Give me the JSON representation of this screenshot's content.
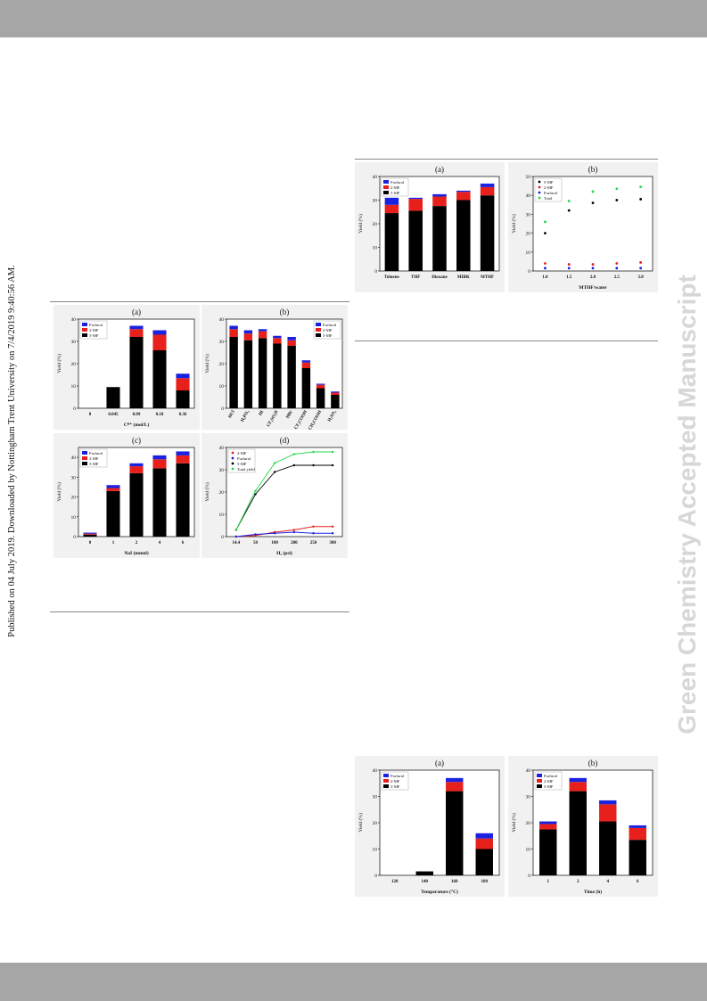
{
  "sidenote": "Published on 04 July 2019. Downloaded by Nottingham Trent University on 7/4/2019 9:40:56 AM.",
  "watermark": "Green Chemistry Accepted Manuscript",
  "colors": {
    "furfural": "#1a22e0",
    "mf2": "#e8201c",
    "mf5": "#000000",
    "total": "#22d84a",
    "panel_bg": "#f1f1f1"
  },
  "figures": {
    "fig_left": {
      "panels": [
        {
          "type": "bar",
          "title": "(a)",
          "xlabel": "Cᴴ⁺ (mol/L)",
          "ylabel": "Yield (%)",
          "ylim": [
            0,
            40
          ],
          "yticks": [
            0,
            10,
            20,
            30,
            40
          ],
          "legend": [
            "Furfural",
            "2-MF",
            "5-MF"
          ],
          "legend_pos": "top-left",
          "categories": [
            "0",
            "0.045",
            "0.09",
            "0.18",
            "0.36"
          ],
          "series": [
            {
              "name": "5-MF",
              "values": [
                0,
                9.5,
                32,
                26,
                8
              ]
            },
            {
              "name": "2-MF",
              "values": [
                0,
                0,
                3.5,
                7,
                5.5
              ]
            },
            {
              "name": "Furfural",
              "values": [
                0,
                0,
                1.5,
                2,
                2
              ]
            }
          ]
        },
        {
          "type": "bar",
          "title": "(b)",
          "xlabel": "",
          "ylabel": "Yield (%)",
          "ylim": [
            0,
            40
          ],
          "yticks": [
            0,
            10,
            20,
            30,
            40
          ],
          "legend": [
            "Furfural",
            "2-MF",
            "5-MF"
          ],
          "legend_pos": "top-right",
          "categories": [
            "HCl",
            "H₃PO₄",
            "HI",
            "CF₃SO₃H",
            "HBr",
            "CF₃COOH",
            "CH₃COOH",
            "H₂SO₄"
          ],
          "series": [
            {
              "name": "5-MF",
              "values": [
                32,
                30.5,
                31.5,
                29,
                28,
                18,
                9,
                6
              ]
            },
            {
              "name": "2-MF",
              "values": [
                3.5,
                3,
                3,
                2.5,
                2.5,
                2.5,
                1.5,
                1
              ]
            },
            {
              "name": "Furfural",
              "values": [
                1.5,
                1.5,
                1,
                1,
                1.5,
                1,
                0.5,
                0.5
              ]
            }
          ]
        },
        {
          "type": "bar",
          "title": "(c)",
          "xlabel": "NaI (mmol)",
          "ylabel": "Yield (%)",
          "ylim": [
            0,
            45
          ],
          "yticks": [
            0,
            10,
            20,
            30,
            40
          ],
          "legend": [
            "Furfural",
            "2-MF",
            "5-MF"
          ],
          "legend_pos": "top-left",
          "categories": [
            "0",
            "1",
            "2",
            "4",
            "6"
          ],
          "series": [
            {
              "name": "5-MF",
              "values": [
                1,
                23,
                32,
                34.5,
                37
              ]
            },
            {
              "name": "2-MF",
              "values": [
                0.5,
                1.5,
                3.5,
                4.5,
                4
              ]
            },
            {
              "name": "Furfural",
              "values": [
                0.5,
                1.5,
                1.5,
                2,
                2
              ]
            }
          ]
        },
        {
          "type": "line",
          "title": "(d)",
          "xlabel": "H₂ (psi)",
          "ylabel": "Yield (%)",
          "ylim": [
            0,
            40
          ],
          "yticks": [
            0,
            10,
            20,
            30,
            40
          ],
          "legend": [
            "2-MF",
            "Furfural",
            "5-MF",
            "Total yield"
          ],
          "legend_pos": "top-left",
          "categories": [
            "14.4",
            "50",
            "100",
            "200",
            "250",
            "300"
          ],
          "series": [
            {
              "name": "2-MF",
              "values": [
                0,
                0.5,
                2,
                3,
                4.5,
                4.5
              ]
            },
            {
              "name": "Furfural",
              "values": [
                0,
                1,
                1.5,
                2,
                1.5,
                1.5
              ]
            },
            {
              "name": "5-MF",
              "values": [
                3,
                19,
                29,
                32,
                32,
                32
              ]
            },
            {
              "name": "Total yield",
              "values": [
                3,
                20.5,
                33,
                37,
                38,
                38
              ]
            }
          ]
        }
      ]
    },
    "fig_top_right": {
      "panels": [
        {
          "type": "bar",
          "title": "(a)",
          "xlabel": "",
          "ylabel": "Yield (%)",
          "ylim": [
            0,
            40
          ],
          "yticks": [
            0,
            10,
            20,
            30,
            40
          ],
          "legend": [
            "Furfural",
            "2-MF",
            "5-MF"
          ],
          "legend_pos": "top-left",
          "categories": [
            "Toluene",
            "THF",
            "Dioxane",
            "MIBK",
            "MTHF"
          ],
          "series": [
            {
              "name": "5-MF",
              "values": [
                24.5,
                25.5,
                27.5,
                30,
                32
              ]
            },
            {
              "name": "2-MF",
              "values": [
                3.5,
                5,
                4,
                3.5,
                3.5
              ]
            },
            {
              "name": "Furfural",
              "values": [
                3,
                0.5,
                1,
                0.5,
                1.5
              ]
            }
          ]
        },
        {
          "type": "scatter",
          "title": "(b)",
          "xlabel": "MTHF/water",
          "ylabel": "Yield (%)",
          "ylim": [
            0,
            50
          ],
          "yticks": [
            0,
            10,
            20,
            30,
            40,
            50
          ],
          "legend": [
            "5-MF",
            "2-MF",
            "Furfural",
            "Total"
          ],
          "legend_pos": "top-left",
          "categories": [
            "1.0",
            "1.5",
            "2.0",
            "2.5",
            "3.0"
          ],
          "series": [
            {
              "name": "5-MF",
              "values": [
                20,
                32,
                36,
                37.5,
                38
              ]
            },
            {
              "name": "2-MF",
              "values": [
                4,
                3.5,
                3.5,
                4,
                4.5
              ]
            },
            {
              "name": "Furfural",
              "values": [
                1.5,
                1.5,
                1.5,
                1.5,
                1.5
              ]
            },
            {
              "name": "Total",
              "values": [
                26,
                37,
                42,
                43.5,
                44.5
              ]
            }
          ]
        }
      ]
    },
    "fig_bottom_right": {
      "panels": [
        {
          "type": "bar",
          "title": "(a)",
          "xlabel": "Temperature (°C)",
          "ylabel": "Yield (%)",
          "ylim": [
            0,
            40
          ],
          "yticks": [
            0,
            10,
            20,
            30,
            40
          ],
          "legend": [
            "Furfural",
            "2-MF",
            "5-MF"
          ],
          "legend_pos": "top-left",
          "categories": [
            "120",
            "140",
            "160",
            "180"
          ],
          "series": [
            {
              "name": "5-MF",
              "values": [
                0,
                1.5,
                32,
                10
              ]
            },
            {
              "name": "2-MF",
              "values": [
                0,
                0,
                3.5,
                4
              ]
            },
            {
              "name": "Furfural",
              "values": [
                0,
                0,
                1.5,
                2
              ]
            }
          ]
        },
        {
          "type": "bar",
          "title": "(b)",
          "xlabel": "Time (h)",
          "ylabel": "Yield (%)",
          "ylim": [
            0,
            40
          ],
          "yticks": [
            0,
            10,
            20,
            30,
            40
          ],
          "legend": [
            "Furfural",
            "2-MF",
            "5-MF"
          ],
          "legend_pos": "top-left",
          "categories": [
            "1",
            "2",
            "4",
            "6"
          ],
          "series": [
            {
              "name": "5-MF",
              "values": [
                17.5,
                32,
                20.5,
                13.5
              ]
            },
            {
              "name": "2-MF",
              "values": [
                2,
                3.5,
                6.5,
                4.5
              ]
            },
            {
              "name": "Furfural",
              "values": [
                1,
                1.5,
                1.5,
                1
              ]
            }
          ]
        }
      ]
    }
  }
}
